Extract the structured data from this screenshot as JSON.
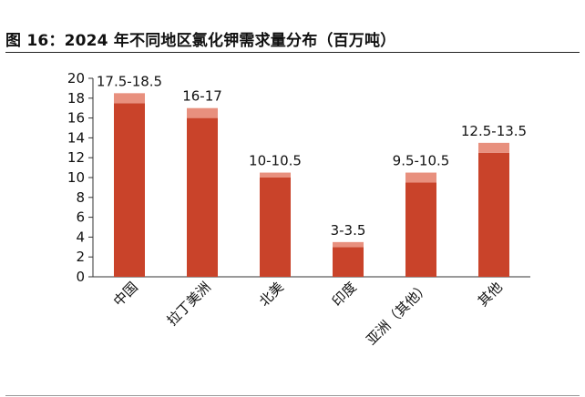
{
  "figure": {
    "title": "图 16：2024 年不同地区氯化钾需求量分布（百万吨）"
  },
  "chart_data": {
    "type": "bar",
    "stacked": true,
    "categories": [
      "中国",
      "拉丁美洲",
      "北美",
      "印度",
      "亚洲（其他）",
      "其他"
    ],
    "series": [
      {
        "role": "low",
        "color": "#c9432a",
        "values": [
          17.5,
          16,
          10,
          3,
          9.5,
          12.5
        ]
      },
      {
        "role": "range",
        "color": "#e8907e",
        "values": [
          1,
          1,
          0.5,
          0.5,
          1,
          1
        ]
      }
    ],
    "data_labels": [
      "17.5-18.5",
      "16-17",
      "10-10.5",
      "3-3.5",
      "9.5-10.5",
      "12.5-13.5"
    ],
    "ylim": [
      0,
      20
    ],
    "yticks": [
      0,
      2,
      4,
      6,
      8,
      10,
      12,
      14,
      16,
      18,
      20
    ],
    "grid": false,
    "legend": "none",
    "xlabel": "",
    "ylabel": ""
  }
}
